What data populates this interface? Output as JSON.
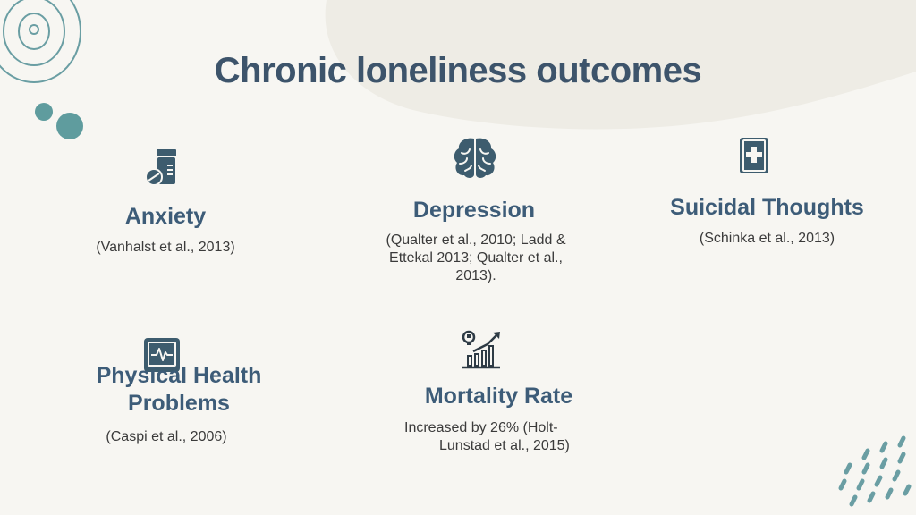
{
  "title": "Chronic loneliness outcomes",
  "colors": {
    "background": "#f7f6f2",
    "title": "#3d546b",
    "heading": "#3d5c78",
    "icon": "#3d5c6e",
    "accent_teal": "#5f9c9e"
  },
  "items": [
    {
      "icon": "pill-bottle-icon",
      "heading": "Anxiety",
      "citation": "(Vanhalst et al., 2013)"
    },
    {
      "icon": "brain-icon",
      "heading": "Depression",
      "citation": "(Qualter et al., 2010; Ladd & Ettekal 2013; Qualter et al., 2013)."
    },
    {
      "icon": "medical-book-icon",
      "heading": "Suicidal Thoughts",
      "citation": "(Schinka et al., 2013)"
    },
    {
      "icon": "heart-monitor-icon",
      "heading_line1": "Physical Health",
      "heading_line2": "Problems",
      "citation": "(Caspi et al., 2006)"
    },
    {
      "icon": "rising-chart-icon",
      "heading": "Mortality Rate",
      "citation_line1": "Increased by 26% (Holt-",
      "citation_line2": "Lunstad et al., 2015)"
    }
  ]
}
